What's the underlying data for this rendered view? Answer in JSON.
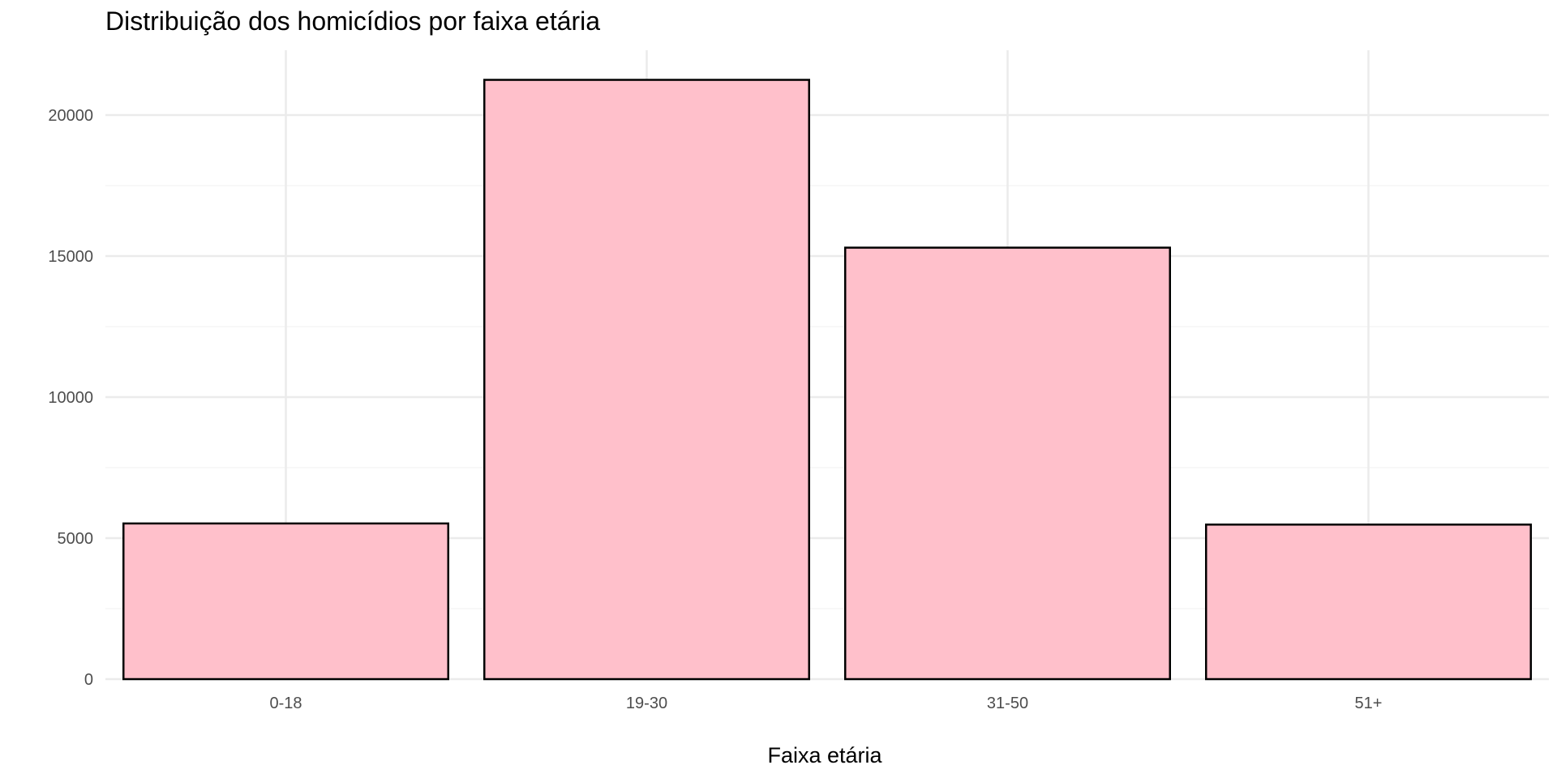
{
  "chart_data": {
    "type": "bar",
    "title": "Distribuição dos homicídios por faixa etária",
    "xlabel": "Faixa etária",
    "ylabel": "",
    "categories": [
      "0-18",
      "19-30",
      "31-50",
      "51+"
    ],
    "values": [
      5520,
      21250,
      15300,
      5480
    ],
    "ylim": [
      0,
      22300
    ],
    "yticks": [
      0,
      5000,
      10000,
      15000,
      20000
    ],
    "grid": true,
    "legend": "none",
    "colors": {
      "bar_fill": "#FFC0CB",
      "bar_stroke": "#000000",
      "grid_major": "#EBEBEB",
      "grid_minor": "#F5F5F5"
    }
  }
}
